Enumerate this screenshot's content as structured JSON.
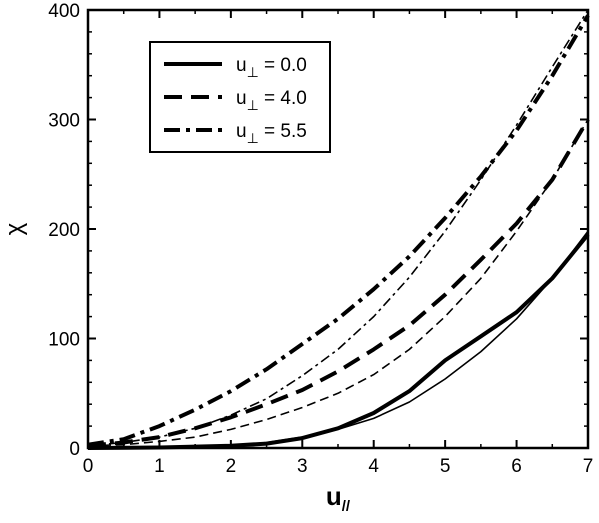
{
  "chart_data": {
    "type": "line",
    "xlabel": "u",
    "xlabel_sub": "//",
    "ylabel": "χ",
    "xlim": [
      0,
      7
    ],
    "ylim": [
      0,
      400
    ],
    "x_ticks": [
      0,
      1,
      2,
      3,
      4,
      5,
      6,
      7
    ],
    "y_ticks": [
      0,
      100,
      200,
      300,
      400
    ],
    "grid": false,
    "legend_position": "top-left",
    "legend": [
      {
        "label": "u",
        "sub": "⊥",
        "value": " = 0.0",
        "style": "solid"
      },
      {
        "label": "u",
        "sub": "⊥",
        "value": " = 4.0",
        "style": "dashed"
      },
      {
        "label": "u",
        "sub": "⊥",
        "value": " = 5.5",
        "style": "dashdot"
      }
    ],
    "series": [
      {
        "style": "solid",
        "weight": "thick",
        "x": [
          0,
          1,
          2,
          2.5,
          3,
          3.5,
          4,
          4.5,
          5,
          5.5,
          6,
          6.5,
          7
        ],
        "y": [
          0,
          0.5,
          2,
          4,
          9,
          18,
          32,
          52,
          80,
          102,
          124,
          155,
          195
        ]
      },
      {
        "style": "solid",
        "weight": "thin",
        "x": [
          0,
          1,
          2,
          2.5,
          3,
          3.5,
          4,
          4.5,
          5,
          5.5,
          6,
          6.5,
          7
        ],
        "y": [
          0,
          0.5,
          2,
          5,
          10,
          17,
          27,
          42,
          63,
          88,
          118,
          155,
          198
        ]
      },
      {
        "style": "dashed",
        "weight": "thick",
        "x": [
          0,
          0.5,
          1,
          1.5,
          2,
          2.5,
          3,
          3.5,
          4,
          4.5,
          5,
          5.5,
          6,
          6.5,
          7
        ],
        "y": [
          2,
          5,
          10,
          18,
          28,
          40,
          53,
          70,
          90,
          112,
          140,
          172,
          205,
          245,
          300
        ]
      },
      {
        "style": "dashed",
        "weight": "thin",
        "x": [
          0,
          0.5,
          1,
          1.5,
          2,
          2.5,
          3,
          3.5,
          4,
          4.5,
          5,
          5.5,
          6,
          6.5,
          7
        ],
        "y": [
          2,
          3,
          6,
          10,
          17,
          26,
          37,
          50,
          67,
          90,
          120,
          155,
          198,
          245,
          300
        ]
      },
      {
        "style": "dashdot",
        "weight": "thick",
        "x": [
          0,
          0.5,
          1,
          1.5,
          2,
          2.5,
          3,
          3.5,
          4,
          4.5,
          5,
          5.5,
          6,
          6.5,
          7
        ],
        "y": [
          3,
          8,
          20,
          35,
          52,
          72,
          95,
          118,
          145,
          175,
          210,
          248,
          290,
          340,
          395
        ]
      },
      {
        "style": "dashdot",
        "weight": "thin",
        "x": [
          0,
          0.5,
          1,
          1.5,
          2,
          2.5,
          3,
          3.5,
          4,
          4.5,
          5,
          5.5,
          6,
          6.5,
          7
        ],
        "y": [
          2,
          5,
          10,
          18,
          30,
          45,
          66,
          90,
          120,
          156,
          198,
          245,
          295,
          348,
          400
        ]
      }
    ]
  }
}
